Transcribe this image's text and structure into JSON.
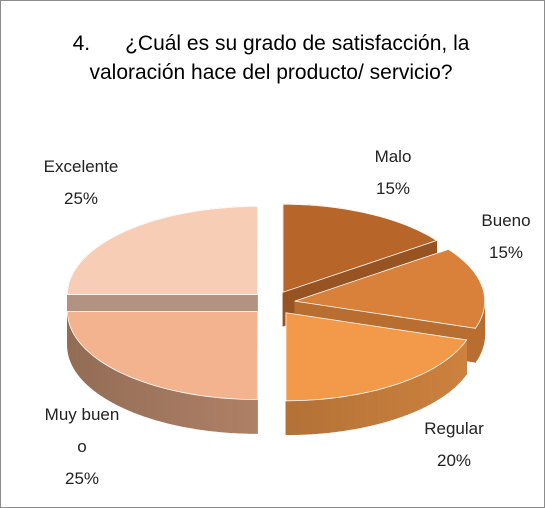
{
  "chart_data": {
    "type": "pie",
    "title": "4.      ¿Cuál es su grado de satisfacción, la valoración hace del producto/ servicio?",
    "categories": [
      "Malo",
      "Bueno",
      "Regular",
      "Muy bueno",
      "Excelente"
    ],
    "values": [
      15,
      15,
      20,
      25,
      25
    ],
    "value_labels": [
      "15%",
      "15%",
      "20%",
      "25%",
      "25%"
    ],
    "colors": [
      "#b8652a",
      "#d9813a",
      "#f39a4a",
      "#f3b38e",
      "#f8cdb5"
    ]
  }
}
